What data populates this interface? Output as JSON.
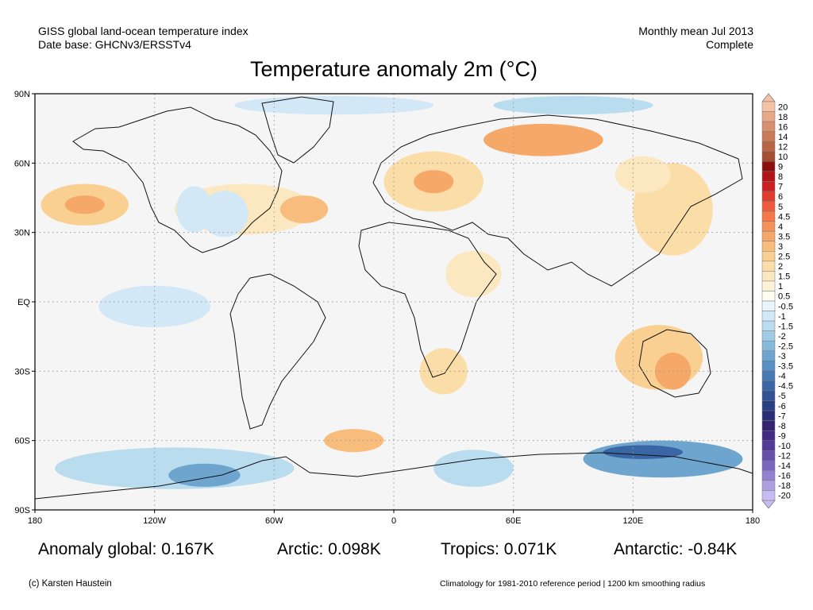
{
  "header": {
    "left_line1": "GISS global land-ocean temperature index",
    "left_line2": "Date base: GHCNv3/ERSSTv4",
    "right_line1": "Monthly mean Jul 2013",
    "right_line2": "Complete"
  },
  "title": "Temperature anomaly 2m (°C)",
  "map": {
    "lat_labels": [
      "90N",
      "60N",
      "30N",
      "EQ",
      "30S",
      "60S",
      "90S"
    ],
    "lon_labels": [
      "180",
      "120W",
      "60W",
      "0",
      "60E",
      "120E",
      "180"
    ],
    "lat_values": [
      90,
      60,
      30,
      0,
      -30,
      -60,
      -90
    ],
    "lon_values": [
      -180,
      -120,
      -60,
      0,
      60,
      120,
      180
    ],
    "extent": {
      "lon_min": -180,
      "lon_max": 180,
      "lat_min": -90,
      "lat_max": 90
    },
    "grid": true
  },
  "colorbar": {
    "labels": [
      "20",
      "18",
      "16",
      "14",
      "12",
      "10",
      "9",
      "8",
      "7",
      "6",
      "5",
      "4.5",
      "4",
      "3.5",
      "3",
      "2.5",
      "2",
      "1.5",
      "1",
      "0.5",
      "-0.5",
      "-1",
      "-1.5",
      "-2",
      "-2.5",
      "-3",
      "-3.5",
      "-4",
      "-4.5",
      "-5",
      "-6",
      "-7",
      "-8",
      "-9",
      "-10",
      "-12",
      "-14",
      "-16",
      "-18",
      "-20"
    ],
    "colors": [
      "#f4c2a6",
      "#e8a88a",
      "#d9906f",
      "#c97a57",
      "#b86545",
      "#a44f34",
      "#8b1010",
      "#b01414",
      "#cc2020",
      "#de3b2c",
      "#ee5a3c",
      "#f47848",
      "#f59258",
      "#f6a868",
      "#f8bd7c",
      "#fad092",
      "#fbdda8",
      "#fce8c0",
      "#fdf2d8",
      "#fffef0",
      "#e9f4fb",
      "#d2e8f6",
      "#b9dcef",
      "#9fcbe5",
      "#86b9da",
      "#6ea5cf",
      "#5990c2",
      "#487bb4",
      "#3b66a6",
      "#305294",
      "#283f84",
      "#2b2d78",
      "#33246e",
      "#402c82",
      "#503c96",
      "#6450aa",
      "#7a67bf",
      "#9282d2",
      "#ad9fe2",
      "#c7bcef"
    ]
  },
  "anomaly_regions": [
    {
      "lon": -155,
      "lat": 42,
      "rx": 22,
      "ry": 9,
      "value": 1.5,
      "color": "#fad092"
    },
    {
      "lon": -155,
      "lat": 42,
      "rx": 10,
      "ry": 4,
      "value": 2.0,
      "color": "#f6a868"
    },
    {
      "lon": -75,
      "lat": 40,
      "rx": 35,
      "ry": 11,
      "value": 1.0,
      "color": "#fce8c0"
    },
    {
      "lon": -45,
      "lat": 40,
      "rx": 12,
      "ry": 6,
      "value": 2.0,
      "color": "#f8bd7c"
    },
    {
      "lon": -85,
      "lat": 38,
      "rx": 12,
      "ry": 10,
      "value": -1.0,
      "color": "#d2e8f6"
    },
    {
      "lon": -100,
      "lat": 40,
      "rx": 9,
      "ry": 10,
      "value": -1.0,
      "color": "#d2e8f6"
    },
    {
      "lon": 20,
      "lat": 52,
      "rx": 25,
      "ry": 13,
      "value": 1.5,
      "color": "#fbdda8"
    },
    {
      "lon": 20,
      "lat": 52,
      "rx": 10,
      "ry": 5,
      "value": 2.0,
      "color": "#f6a868"
    },
    {
      "lon": 75,
      "lat": 70,
      "rx": 30,
      "ry": 7,
      "value": 2.0,
      "color": "#f6a868"
    },
    {
      "lon": 140,
      "lat": 40,
      "rx": 20,
      "ry": 20,
      "value": 1.5,
      "color": "#fbdda8"
    },
    {
      "lon": 125,
      "lat": 55,
      "rx": 14,
      "ry": 8,
      "value": 1.0,
      "color": "#fce8c0"
    },
    {
      "lon": 133,
      "lat": -24,
      "rx": 22,
      "ry": 14,
      "value": 1.5,
      "color": "#fad092"
    },
    {
      "lon": 140,
      "lat": -30,
      "rx": 9,
      "ry": 8,
      "value": 2.0,
      "color": "#f6a868"
    },
    {
      "lon": -120,
      "lat": -2,
      "rx": 28,
      "ry": 9,
      "value": -1.0,
      "color": "#d2e8f6"
    },
    {
      "lon": 25,
      "lat": -30,
      "rx": 12,
      "ry": 10,
      "value": 1.5,
      "color": "#fbdda8"
    },
    {
      "lon": 40,
      "lat": 12,
      "rx": 14,
      "ry": 10,
      "value": 1.0,
      "color": "#fce8c0"
    },
    {
      "lon": -20,
      "lat": -60,
      "rx": 15,
      "ry": 5,
      "value": 1.5,
      "color": "#f8bd7c"
    },
    {
      "lon": -110,
      "lat": -72,
      "rx": 60,
      "ry": 9,
      "value": -1.5,
      "color": "#b9dcef"
    },
    {
      "lon": -95,
      "lat": -75,
      "rx": 18,
      "ry": 5,
      "value": -3.0,
      "color": "#6ea5cf"
    },
    {
      "lon": 135,
      "lat": -68,
      "rx": 40,
      "ry": 8,
      "value": -3.0,
      "color": "#6ea5cf"
    },
    {
      "lon": 125,
      "lat": -65,
      "rx": 20,
      "ry": 3,
      "value": -4.5,
      "color": "#3b66a6"
    },
    {
      "lon": 40,
      "lat": -72,
      "rx": 20,
      "ry": 8,
      "value": -1.5,
      "color": "#b9dcef"
    },
    {
      "lon": -30,
      "lat": 85,
      "rx": 50,
      "ry": 4,
      "value": -1.0,
      "color": "#d2e8f6"
    },
    {
      "lon": 90,
      "lat": 85,
      "rx": 40,
      "ry": 4,
      "value": -1.5,
      "color": "#b9dcef"
    }
  ],
  "stats": {
    "global": "Anomaly global: 0.167K",
    "arctic": "Arctic: 0.098K",
    "tropics": "Tropics: 0.071K",
    "antarctic": "Antarctic: -0.84K"
  },
  "footer": {
    "credit": "(c) Karsten Haustein",
    "note": "Climatology for 1981-2010 reference period | 1200 km smoothing radius"
  }
}
